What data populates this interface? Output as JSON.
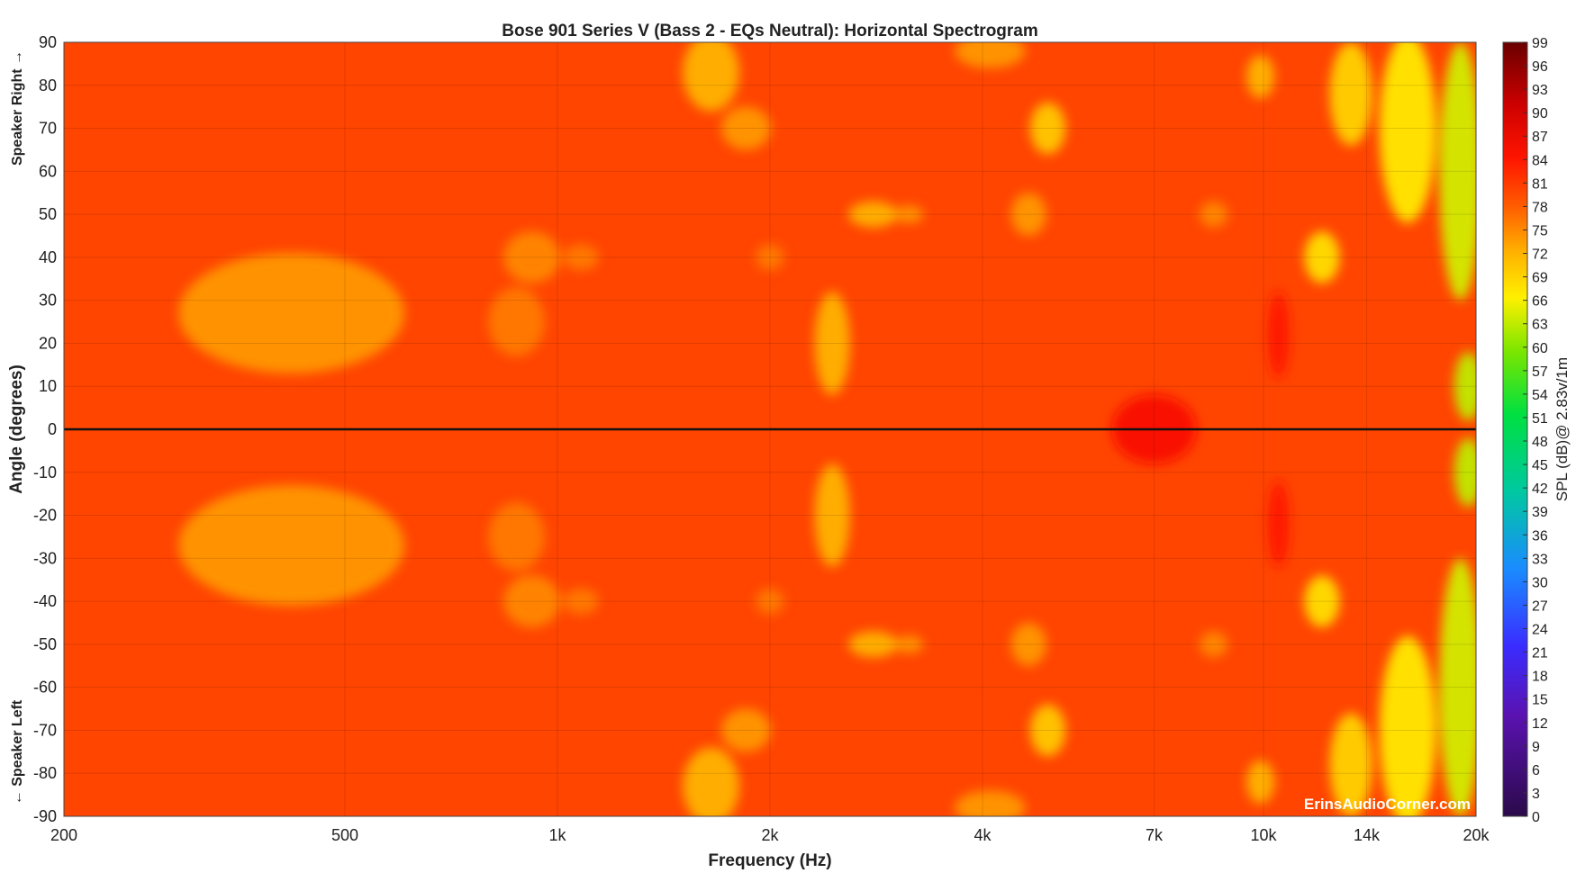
{
  "chart_data": {
    "type": "heatmap",
    "title": "Bose 901 Series V (Bass 2 - EQs Neutral): Horizontal Spectrogram",
    "xlabel": "Frequency (Hz)",
    "ylabel": "Angle (degrees)",
    "x_scale": "log",
    "xlim": [
      200,
      20000
    ],
    "ylim": [
      -90,
      90
    ],
    "x_ticks": [
      {
        "value": 200,
        "label": "200"
      },
      {
        "value": 500,
        "label": "500"
      },
      {
        "value": 1000,
        "label": "1k"
      },
      {
        "value": 2000,
        "label": "2k"
      },
      {
        "value": 4000,
        "label": "4k"
      },
      {
        "value": 7000,
        "label": "7k"
      },
      {
        "value": 10000,
        "label": "10k"
      },
      {
        "value": 14000,
        "label": "14k"
      },
      {
        "value": 20000,
        "label": "20k"
      }
    ],
    "y_ticks": [
      90,
      80,
      70,
      60,
      50,
      40,
      30,
      20,
      10,
      0,
      -10,
      -20,
      -30,
      -40,
      -50,
      -60,
      -70,
      -80,
      -90
    ],
    "side_labels": {
      "top": "Speaker Right →",
      "bottom": "← Speaker Left"
    },
    "colorbar": {
      "label": "SPL (dB)@ 2.83v/1m",
      "min": 0,
      "max": 99,
      "ticks": [
        99,
        96,
        93,
        90,
        87,
        84,
        81,
        78,
        75,
        72,
        69,
        66,
        63,
        60,
        57,
        54,
        51,
        48,
        45,
        42,
        39,
        36,
        33,
        30,
        27,
        24,
        21,
        18,
        15,
        12,
        9,
        6,
        3,
        0
      ]
    },
    "reference_line_angle": 0,
    "grid": true,
    "watermark": "ErinsAudioCorner.com",
    "background_level_db": 80,
    "features": [
      {
        "freq": 420,
        "angle": 27,
        "spread_freq": 0.16,
        "spread_angle": 14,
        "db": 74
      },
      {
        "freq": 420,
        "angle": -27,
        "spread_freq": 0.16,
        "spread_angle": 14,
        "db": 74
      },
      {
        "freq": 875,
        "angle": 25,
        "spread_freq": 0.04,
        "spread_angle": 8,
        "db": 76
      },
      {
        "freq": 875,
        "angle": -25,
        "spread_freq": 0.04,
        "spread_angle": 8,
        "db": 76
      },
      {
        "freq": 920,
        "angle": 40,
        "spread_freq": 0.04,
        "spread_angle": 6,
        "db": 75
      },
      {
        "freq": 920,
        "angle": -40,
        "spread_freq": 0.04,
        "spread_angle": 6,
        "db": 75
      },
      {
        "freq": 1080,
        "angle": 40,
        "spread_freq": 0.025,
        "spread_angle": 3,
        "db": 76
      },
      {
        "freq": 1080,
        "angle": -40,
        "spread_freq": 0.025,
        "spread_angle": 3,
        "db": 76
      },
      {
        "freq": 1650,
        "angle": 83,
        "spread_freq": 0.04,
        "spread_angle": 9,
        "db": 72
      },
      {
        "freq": 1650,
        "angle": -83,
        "spread_freq": 0.04,
        "spread_angle": 9,
        "db": 72
      },
      {
        "freq": 1850,
        "angle": 70,
        "spread_freq": 0.035,
        "spread_angle": 5,
        "db": 74
      },
      {
        "freq": 1850,
        "angle": -70,
        "spread_freq": 0.035,
        "spread_angle": 5,
        "db": 74
      },
      {
        "freq": 2000,
        "angle": 40,
        "spread_freq": 0.02,
        "spread_angle": 3,
        "db": 76
      },
      {
        "freq": 2000,
        "angle": -40,
        "spread_freq": 0.02,
        "spread_angle": 3,
        "db": 76
      },
      {
        "freq": 2450,
        "angle": 20,
        "spread_freq": 0.025,
        "spread_angle": 12,
        "db": 72
      },
      {
        "freq": 2450,
        "angle": -20,
        "spread_freq": 0.025,
        "spread_angle": 12,
        "db": 72
      },
      {
        "freq": 2800,
        "angle": 50,
        "spread_freq": 0.035,
        "spread_angle": 3,
        "db": 72
      },
      {
        "freq": 2800,
        "angle": -50,
        "spread_freq": 0.035,
        "spread_angle": 3,
        "db": 72
      },
      {
        "freq": 3150,
        "angle": 50,
        "spread_freq": 0.02,
        "spread_angle": 2,
        "db": 74
      },
      {
        "freq": 3150,
        "angle": -50,
        "spread_freq": 0.02,
        "spread_angle": 2,
        "db": 74
      },
      {
        "freq": 4650,
        "angle": 50,
        "spread_freq": 0.025,
        "spread_angle": 5,
        "db": 74
      },
      {
        "freq": 4650,
        "angle": -50,
        "spread_freq": 0.025,
        "spread_angle": 5,
        "db": 74
      },
      {
        "freq": 4950,
        "angle": 70,
        "spread_freq": 0.025,
        "spread_angle": 6,
        "db": 70
      },
      {
        "freq": 4950,
        "angle": -70,
        "spread_freq": 0.025,
        "spread_angle": 6,
        "db": 70
      },
      {
        "freq": 4100,
        "angle": 88,
        "spread_freq": 0.05,
        "spread_angle": 4,
        "db": 74
      },
      {
        "freq": 4100,
        "angle": -88,
        "spread_freq": 0.05,
        "spread_angle": 4,
        "db": 74
      },
      {
        "freq": 8500,
        "angle": 50,
        "spread_freq": 0.02,
        "spread_angle": 3,
        "db": 75
      },
      {
        "freq": 8500,
        "angle": -50,
        "spread_freq": 0.02,
        "spread_angle": 3,
        "db": 75
      },
      {
        "freq": 9900,
        "angle": 82,
        "spread_freq": 0.02,
        "spread_angle": 5,
        "db": 72
      },
      {
        "freq": 9900,
        "angle": -82,
        "spread_freq": 0.02,
        "spread_angle": 5,
        "db": 72
      },
      {
        "freq": 12100,
        "angle": 40,
        "spread_freq": 0.025,
        "spread_angle": 6,
        "db": 68
      },
      {
        "freq": 12100,
        "angle": -40,
        "spread_freq": 0.025,
        "spread_angle": 6,
        "db": 68
      },
      {
        "freq": 13300,
        "angle": 78,
        "spread_freq": 0.03,
        "spread_angle": 12,
        "db": 69
      },
      {
        "freq": 13300,
        "angle": -78,
        "spread_freq": 0.03,
        "spread_angle": 12,
        "db": 69
      },
      {
        "freq": 16000,
        "angle": 70,
        "spread_freq": 0.04,
        "spread_angle": 22,
        "db": 67
      },
      {
        "freq": 16000,
        "angle": -70,
        "spread_freq": 0.04,
        "spread_angle": 22,
        "db": 67
      },
      {
        "freq": 19000,
        "angle": 60,
        "spread_freq": 0.03,
        "spread_angle": 30,
        "db": 64
      },
      {
        "freq": 19000,
        "angle": -60,
        "spread_freq": 0.03,
        "spread_angle": 30,
        "db": 64
      },
      {
        "freq": 19500,
        "angle": 10,
        "spread_freq": 0.02,
        "spread_angle": 8,
        "db": 63
      },
      {
        "freq": 19500,
        "angle": -10,
        "spread_freq": 0.02,
        "spread_angle": 8,
        "db": 63
      },
      {
        "freq": 7000,
        "angle": 0,
        "spread_freq": 0.06,
        "spread_angle": 8,
        "db": 85
      },
      {
        "freq": 10500,
        "angle": 22,
        "spread_freq": 0.015,
        "spread_angle": 10,
        "db": 84
      },
      {
        "freq": 10500,
        "angle": -22,
        "spread_freq": 0.015,
        "spread_angle": 10,
        "db": 84
      }
    ]
  }
}
